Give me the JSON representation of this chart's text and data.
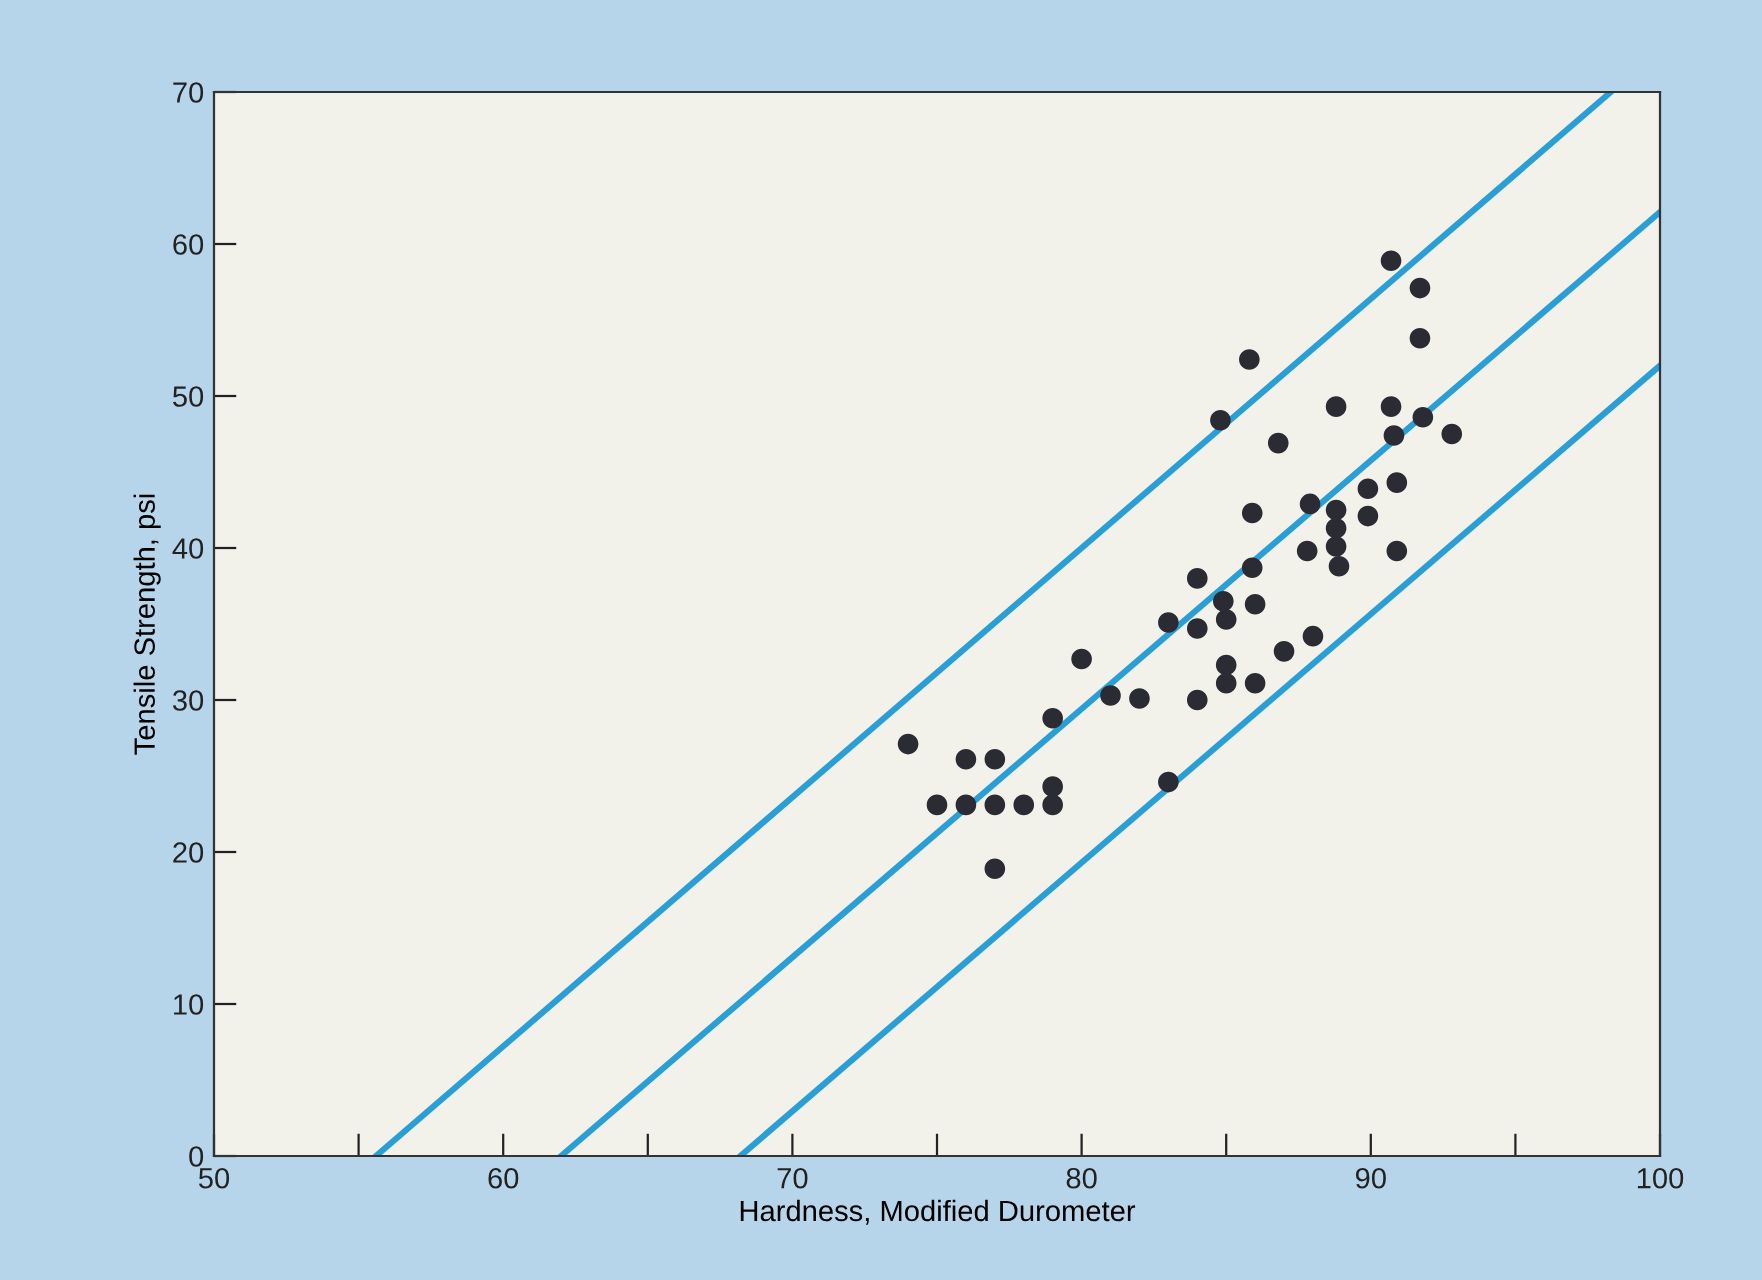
{
  "chart_data": {
    "type": "scatter",
    "xlabel": "Hardness, Modified Durometer",
    "ylabel": "Tensile Strength, psi",
    "xlim": [
      50,
      100
    ],
    "ylim": [
      0,
      70
    ],
    "xticks": [
      50,
      {
        "value": 55,
        "label": null
      },
      60,
      {
        "value": 65,
        "label": null
      },
      70,
      {
        "value": 75,
        "label": null
      },
      80,
      {
        "value": 85,
        "label": null
      },
      90,
      {
        "value": 95,
        "label": null
      },
      100
    ],
    "yticks": [
      0,
      10,
      20,
      30,
      40,
      50,
      60,
      70
    ],
    "grid": false,
    "series": [
      {
        "marker": "circle",
        "color": "#2b2b33",
        "x": [
          74,
          75,
          76,
          76,
          77,
          77,
          77,
          78,
          79,
          79,
          79,
          80,
          81,
          82,
          83,
          83,
          84,
          84,
          85,
          85,
          85,
          86,
          87,
          88,
          90.7,
          91.7,
          91.7,
          85.8,
          84.8,
          88.8,
          90.7,
          91.8,
          92.8,
          90.8,
          86.8,
          89.9,
          90.9,
          87.9,
          88.8,
          88.8,
          89.9,
          85.9,
          88.8,
          87.8,
          90.9,
          88.9,
          85.9,
          84.0,
          84.9,
          86.0
        ],
        "values": [
          27.1,
          23.1,
          26.1,
          23.1,
          26.1,
          23.1,
          18.9,
          23.1,
          24.3,
          23.1,
          28.8,
          32.7,
          30.3,
          30.1,
          24.6,
          35.1,
          34.7,
          30.0,
          32.3,
          31.1,
          35.3,
          31.1,
          33.2,
          34.2,
          58.9,
          57.1,
          53.8,
          52.4,
          48.4,
          49.3,
          49.3,
          48.6,
          47.5,
          47.4,
          46.9,
          43.9,
          44.3,
          42.9,
          42.5,
          41.3,
          42.1,
          42.3,
          40.1,
          39.8,
          39.8,
          38.8,
          38.7,
          38.0,
          36.5,
          36.3
        ]
      },
      {
        "type": "line",
        "marker": "none",
        "color": "#2a9fd6",
        "x": [
          55.6,
          98.3
        ],
        "values": [
          0,
          70
        ]
      },
      {
        "type": "line",
        "marker": "none",
        "color": "#2a9fd6",
        "x": [
          62.0,
          100
        ],
        "values": [
          0,
          62.1
        ]
      },
      {
        "type": "line",
        "marker": "none",
        "color": "#2a9fd6",
        "x": [
          68.2,
          100
        ],
        "values": [
          0,
          52.0
        ]
      }
    ]
  }
}
